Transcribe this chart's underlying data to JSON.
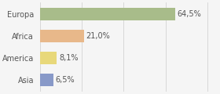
{
  "categories": [
    "Europa",
    "Africa",
    "America",
    "Asia"
  ],
  "values": [
    64.5,
    21.0,
    8.1,
    6.5
  ],
  "labels": [
    "64,5%",
    "21,0%",
    "8,1%",
    "6,5%"
  ],
  "bar_colors": [
    "#a8bc8a",
    "#e8b88a",
    "#e8d87a",
    "#8899c8"
  ],
  "background_color": "#f5f5f5",
  "xlim": [
    0,
    85
  ],
  "bar_height": 0.55,
  "label_fontsize": 7.0,
  "category_fontsize": 7.0,
  "figsize": [
    2.8,
    1.2
  ],
  "dpi": 100
}
